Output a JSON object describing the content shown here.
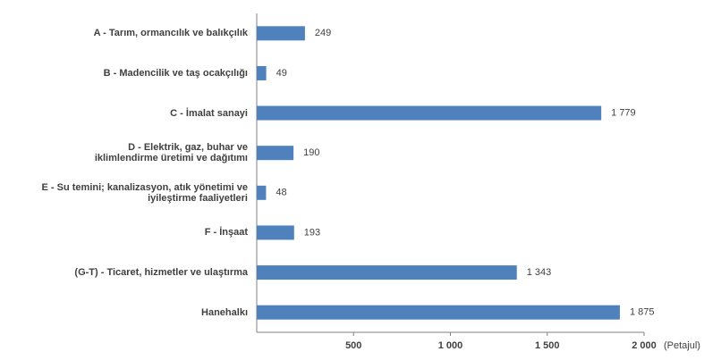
{
  "chart_data": {
    "type": "barh",
    "categories": [
      "A - Tarım, ormancılık ve balıkçılık",
      "B - Madencilik ve taş ocakçılığı",
      "C - İmalat sanayi",
      "D - Elektrik, gaz, buhar ve\niklimlendirme üretimi ve dağıtımı",
      "E - Su temini; kanalizasyon, atık yönetimi ve\niyileştirme faaliyetleri",
      "F - İnşaat",
      "(G-T) - Ticaret, hizmetler ve ulaştırma",
      "Hanehalkı"
    ],
    "values": [
      249,
      49,
      1779,
      190,
      48,
      193,
      1343,
      1875
    ],
    "value_labels": [
      "249",
      "49",
      "1 779",
      "190",
      "48",
      "193",
      "1 343",
      "1 875"
    ],
    "color": "#4f81bd",
    "xlim": [
      0,
      2000
    ],
    "xticks": [
      500,
      {
        "value": 1000,
        "label": "1 000"
      },
      {
        "value": 1500,
        "label": "1 500"
      },
      {
        "value": 2000,
        "label": "2 000"
      }
    ],
    "x_unit": "(Petajul)"
  }
}
